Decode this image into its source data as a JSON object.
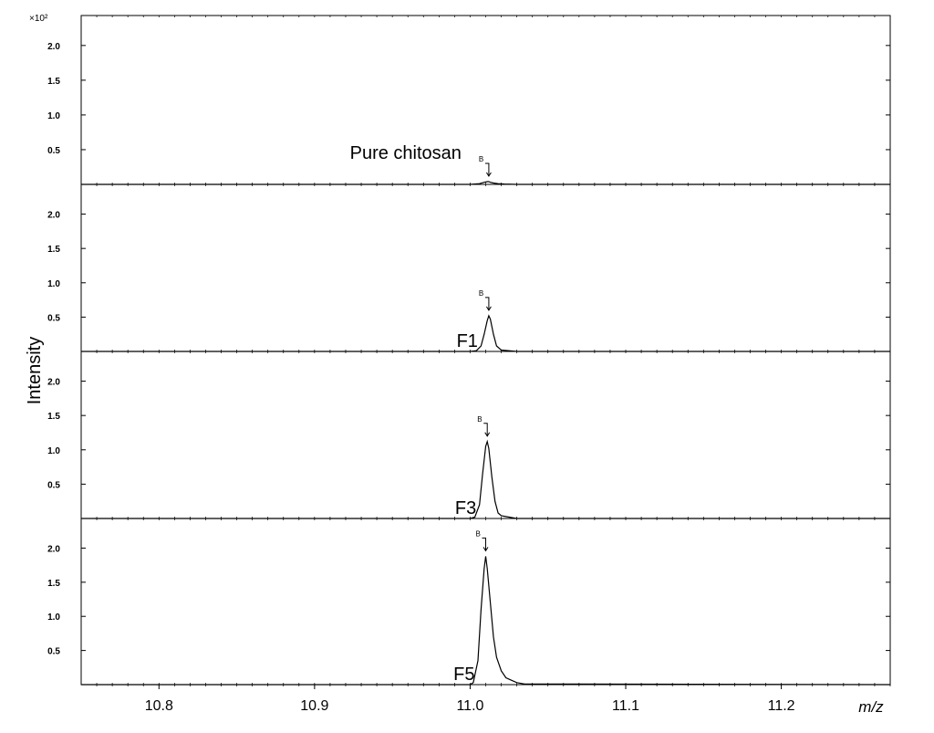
{
  "chart_data": {
    "type": "line",
    "ylabel": "Intensity",
    "xlabel": "m/z",
    "y_scale_label": "×10²",
    "xlim": [
      10.75,
      11.27
    ],
    "ylim": [
      0,
      2.3
    ],
    "x_ticks": [
      "10.8",
      "10.9",
      "11.0",
      "11.1",
      "11.2"
    ],
    "y_ticks": [
      "0.5",
      "1.0",
      "1.5",
      "2.0"
    ],
    "peak_marker_label": "B",
    "grid": false,
    "panels": [
      {
        "name": "Pure chitosan",
        "peak_x": 11.012,
        "peak_y": 0.04,
        "x": [
          10.75,
          11.0,
          11.006,
          11.009,
          11.011,
          11.012,
          11.013,
          11.015,
          11.018,
          11.022,
          11.03,
          11.27
        ],
        "y": [
          0,
          0,
          0.01,
          0.03,
          0.04,
          0.04,
          0.03,
          0.02,
          0.01,
          0.005,
          0,
          0
        ]
      },
      {
        "name": "F1",
        "peak_x": 11.012,
        "peak_y": 0.52,
        "x": [
          10.75,
          11.0,
          11.004,
          11.007,
          11.009,
          11.011,
          11.012,
          11.013,
          11.015,
          11.017,
          11.02,
          11.025,
          11.03,
          11.27
        ],
        "y": [
          0,
          0,
          0.01,
          0.08,
          0.25,
          0.45,
          0.52,
          0.47,
          0.25,
          0.08,
          0.02,
          0.01,
          0,
          0
        ]
      },
      {
        "name": "F3",
        "peak_x": 11.011,
        "peak_y": 1.12,
        "x": [
          10.75,
          11.0,
          11.003,
          11.006,
          11.008,
          11.01,
          11.011,
          11.012,
          11.014,
          11.016,
          11.018,
          11.02,
          11.025,
          11.03,
          11.27
        ],
        "y": [
          0,
          0,
          0.02,
          0.2,
          0.65,
          1.05,
          1.12,
          1.02,
          0.6,
          0.25,
          0.08,
          0.04,
          0.02,
          0,
          0
        ]
      },
      {
        "name": "F5",
        "peak_x": 11.01,
        "peak_y": 1.88,
        "x": [
          10.75,
          11.0,
          11.002,
          11.005,
          11.007,
          11.009,
          11.01,
          11.011,
          11.013,
          11.015,
          11.017,
          11.02,
          11.023,
          11.026,
          11.03,
          11.035,
          11.27
        ],
        "y": [
          0,
          0,
          0.03,
          0.35,
          1.1,
          1.7,
          1.88,
          1.7,
          1.2,
          0.7,
          0.4,
          0.2,
          0.1,
          0.07,
          0.03,
          0.01,
          0
        ]
      }
    ]
  }
}
